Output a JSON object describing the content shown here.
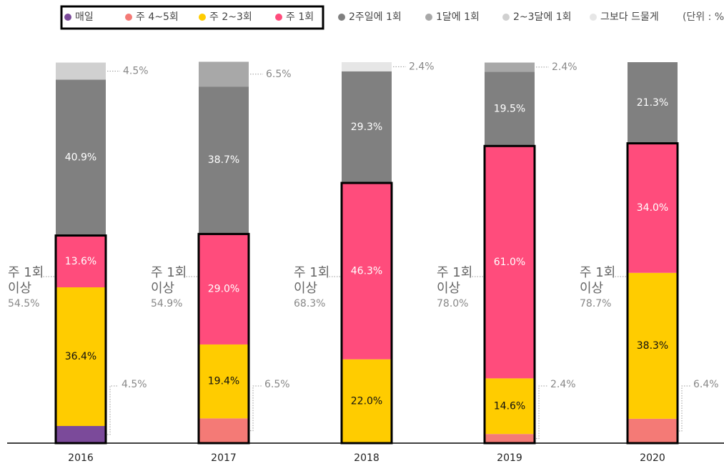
{
  "chart_data": {
    "type": "stacked_bar",
    "unit_note": "(단위 : %)",
    "categories": [
      "2016",
      "2017",
      "2018",
      "2019",
      "2020"
    ],
    "ylim": [
      0,
      100
    ],
    "highlight_first_n": 4,
    "series": [
      {
        "name": "매일",
        "color": "#7b4a9a",
        "values": [
          4.5,
          0,
          0,
          0,
          0
        ],
        "value_labels": [
          "4.5%",
          null,
          null,
          null,
          null
        ]
      },
      {
        "name": "주 4~5회",
        "color": "#f47a76",
        "values": [
          0,
          6.5,
          0,
          2.4,
          6.4
        ],
        "value_labels": [
          null,
          "6.5%",
          null,
          "2.4%",
          "6.4%"
        ]
      },
      {
        "name": "주 2~3회",
        "color": "#ffcc00",
        "values": [
          36.4,
          19.4,
          22.0,
          14.6,
          38.3
        ],
        "value_labels": [
          "36.4%",
          "19.4%",
          "22.0%",
          "14.6%",
          "38.3%"
        ]
      },
      {
        "name": "주 1회",
        "color": "#ff4c7c",
        "values": [
          13.6,
          29.0,
          46.3,
          61.0,
          34.0
        ],
        "value_labels": [
          "13.6%",
          "29.0%",
          "46.3%",
          "61.0%",
          "34.0%"
        ]
      },
      {
        "name": "2주일에 1회",
        "color": "#808080",
        "values": [
          40.9,
          38.7,
          29.3,
          19.5,
          21.3
        ],
        "value_labels": [
          "40.9%",
          "38.7%",
          "29.3%",
          "19.5%",
          "21.3%"
        ]
      },
      {
        "name": "1달에 1회",
        "color": "#a8a8a8",
        "values": [
          0,
          6.5,
          0,
          2.4,
          0
        ],
        "value_labels": [
          null,
          "6.5%",
          null,
          "2.4%",
          null
        ]
      },
      {
        "name": "2~3달에 1회",
        "color": "#d0d0d0",
        "values": [
          4.5,
          0,
          0,
          0,
          0
        ],
        "value_labels": [
          "4.5%",
          null,
          null,
          null,
          null
        ]
      },
      {
        "name": "그보다 드물게",
        "color": "#e6e6e6",
        "values": [
          0,
          0,
          2.4,
          0,
          0
        ],
        "value_labels": [
          null,
          null,
          "2.4%",
          null,
          null
        ]
      }
    ],
    "summary": {
      "label_lines": [
        "주 1회",
        "이상"
      ],
      "values": [
        54.5,
        54.9,
        68.3,
        78.0,
        78.7
      ],
      "value_labels": [
        "54.5%",
        "54.9%",
        "68.3%",
        "78.0%",
        "78.7%"
      ]
    }
  }
}
